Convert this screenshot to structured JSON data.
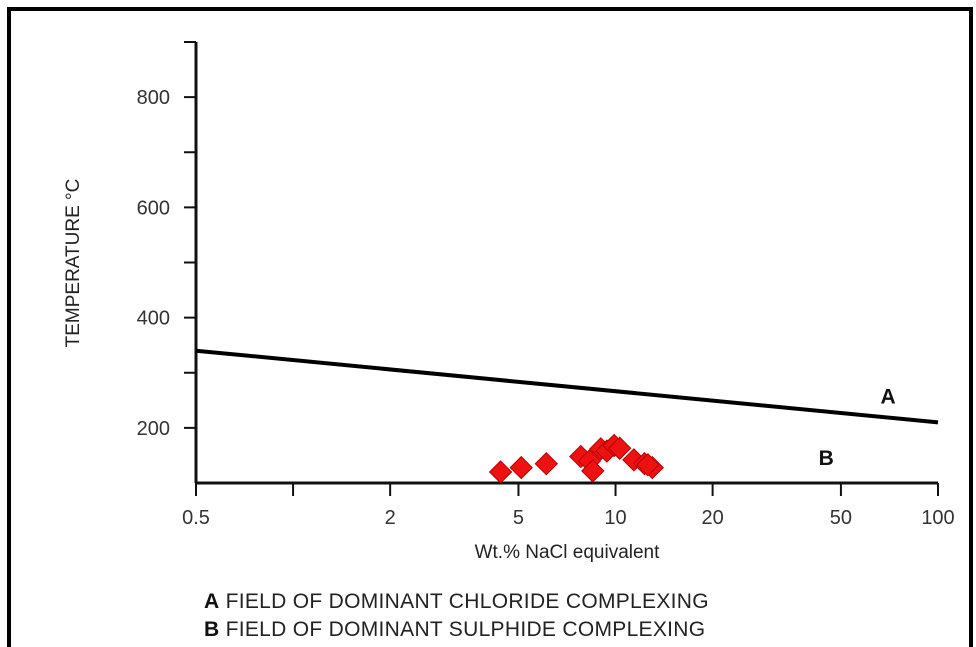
{
  "chart_data": {
    "type": "scatter",
    "title": "",
    "xlabel": "Wt.% NaCl equivalent",
    "ylabel": "TEMPERATURE °C",
    "x_scale": "log",
    "xlim": [
      0.5,
      100
    ],
    "ylim": [
      100,
      900
    ],
    "x_ticks": [
      0.5,
      1,
      2,
      5,
      10,
      20,
      50,
      100
    ],
    "x_tick_labels": [
      "0.5",
      "",
      "2",
      "5",
      "10",
      "20",
      "50",
      "100"
    ],
    "y_ticks": [
      200,
      300,
      400,
      500,
      600,
      700,
      800,
      900
    ],
    "y_tick_labels": [
      "200",
      "",
      "400",
      "",
      "600",
      "",
      "800",
      ""
    ],
    "grid": false,
    "boundary_line": {
      "x": [
        0.5,
        100
      ],
      "y": [
        340,
        210
      ]
    },
    "field_labels": [
      {
        "text": "A",
        "x": 70,
        "y": 257
      },
      {
        "text": "B",
        "x": 45,
        "y": 145
      }
    ],
    "series": [
      {
        "marker": "diamond",
        "color": "#ee1111",
        "points": [
          [
            4.4,
            120
          ],
          [
            5.1,
            128
          ],
          [
            6.1,
            135
          ],
          [
            7.8,
            148
          ],
          [
            8.3,
            140
          ],
          [
            8.5,
            122
          ],
          [
            9.0,
            162
          ],
          [
            9.4,
            158
          ],
          [
            9.9,
            168
          ],
          [
            10.3,
            163
          ],
          [
            11.4,
            142
          ],
          [
            12.3,
            135
          ],
          [
            13.0,
            128
          ],
          [
            12.6,
            133
          ]
        ]
      }
    ]
  },
  "legend": {
    "a_letter": "A",
    "a_text": "FIELD OF DOMINANT CHLORIDE COMPLEXING",
    "b_letter": "B",
    "b_text": "FIELD OF DOMINANT SULPHIDE COMPLEXING"
  },
  "colors": {
    "frame": "#000000",
    "axis": "#111111",
    "marker": "#ee1111"
  }
}
